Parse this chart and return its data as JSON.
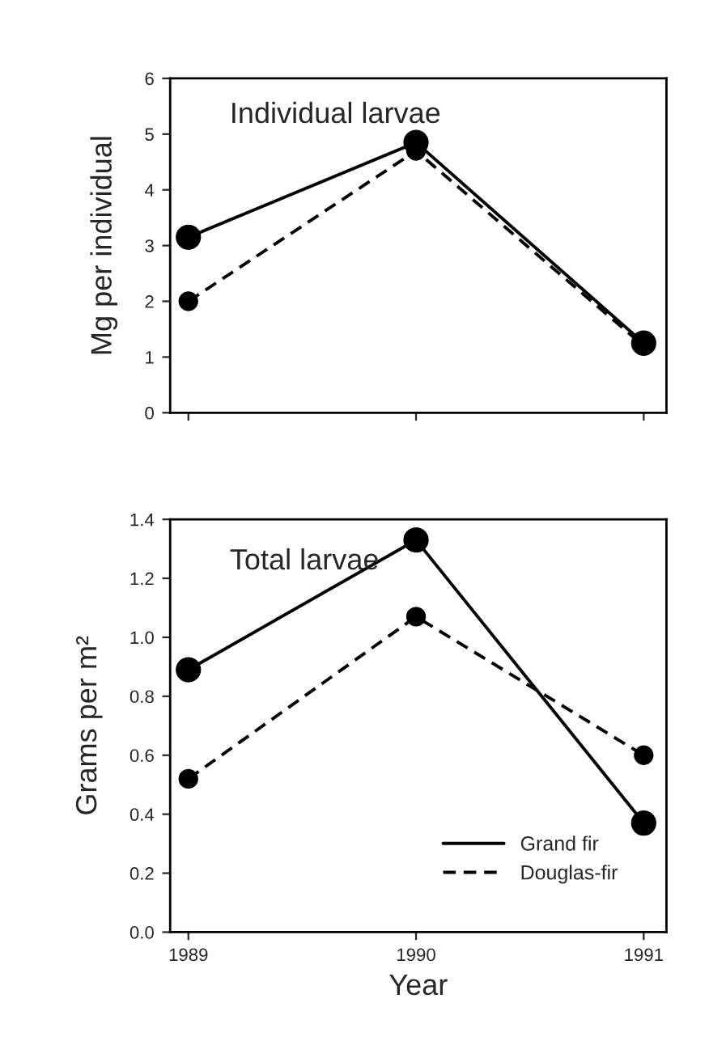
{
  "chart_data": [
    {
      "type": "line",
      "title": "Individual larvae",
      "ylabel": "Mg per individual",
      "x": [
        1989,
        1990,
        1991
      ],
      "series": [
        {
          "color": "#000000",
          "line_style": "solid",
          "values": [
            3.15,
            4.85,
            1.25
          ]
        },
        {
          "color": "#000000",
          "line_style": "dashed",
          "values": [
            2.0,
            4.7,
            1.2
          ]
        }
      ],
      "xlim": [
        1988.92,
        1991.1
      ],
      "xticks": [
        {
          "value": 1989,
          "label": null
        },
        {
          "value": 1990,
          "label": null
        },
        {
          "value": 1991,
          "label": null
        }
      ],
      "ylim": [
        0,
        6
      ],
      "yticks": [
        0,
        1,
        2,
        3,
        4,
        5,
        6
      ],
      "tick_labels": "y",
      "marker": "circle",
      "grid": false,
      "legend": false
    },
    {
      "type": "line",
      "title": "Total larvae",
      "xlabel": "Year",
      "ylabel": "Grams per m²",
      "x": [
        1989,
        1990,
        1991
      ],
      "series": [
        {
          "name": "Grand fir",
          "color": "#000000",
          "line_style": "solid",
          "values": [
            0.89,
            1.33,
            0.37
          ]
        },
        {
          "name": "Douglas-fir",
          "color": "#000000",
          "line_style": "dashed",
          "values": [
            0.52,
            1.07,
            0.6
          ]
        }
      ],
      "xlim": [
        1988.92,
        1991.1
      ],
      "xticks": [
        1989,
        1990,
        1991
      ],
      "ylim": [
        0,
        1.4
      ],
      "yticks": [
        {
          "value": 0,
          "label": "0.0"
        },
        {
          "value": 0.2,
          "label": "0.2"
        },
        {
          "value": 0.4,
          "label": "0.4"
        },
        {
          "value": 0.6,
          "label": "0.6"
        },
        {
          "value": 0.8,
          "label": "0.8"
        },
        {
          "value": 1.0,
          "label": "1.0"
        },
        {
          "value": 1.2,
          "label": "1.2"
        },
        {
          "value": 1.4,
          "label": "1.4"
        }
      ],
      "marker": "circle",
      "grid": false,
      "legend": "bottom right"
    }
  ]
}
